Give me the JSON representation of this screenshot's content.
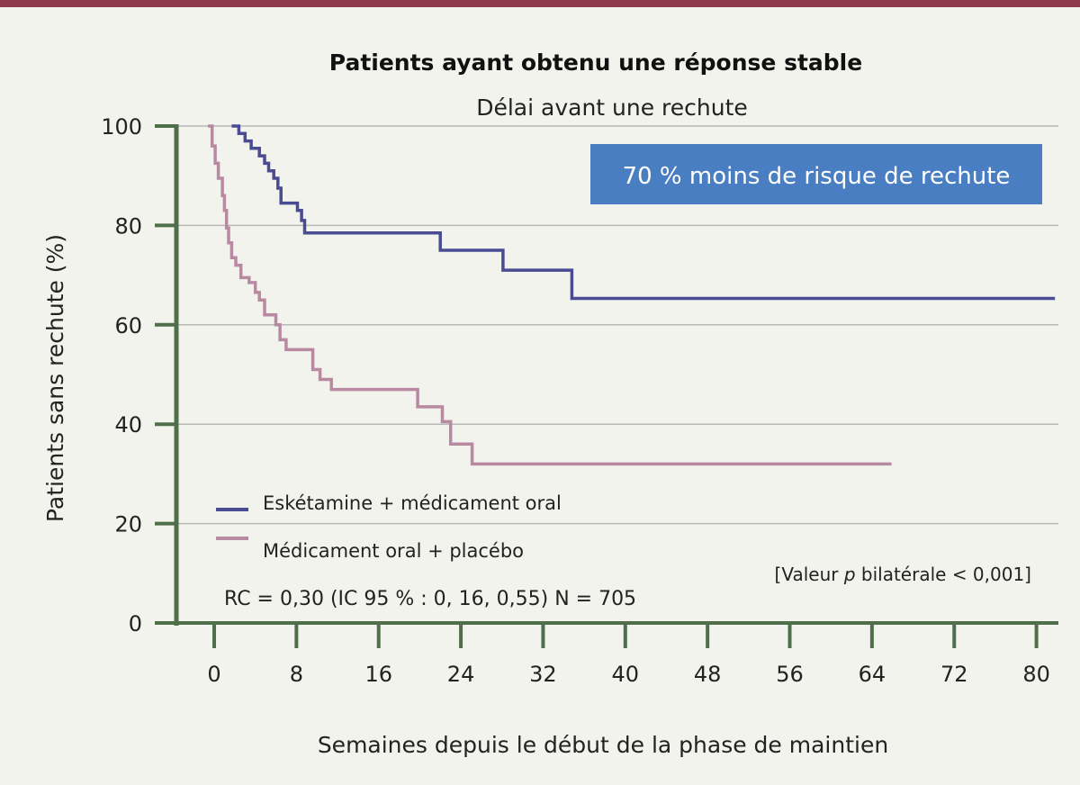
{
  "chart_data": {
    "type": "line",
    "title": "Patients ayant obtenu une réponse stable",
    "subtitle": "Délai avant une rechute",
    "xlabel": "Semaines depuis le début de la phase de maintien",
    "ylabel": "Patients sans rechute (%)",
    "xlim": [
      -3.5,
      82
    ],
    "ylim": [
      0,
      100
    ],
    "xticks": [
      0,
      8,
      16,
      24,
      32,
      40,
      48,
      56,
      64,
      72,
      80
    ],
    "yticks": [
      0,
      20,
      40,
      60,
      80,
      100
    ],
    "grid": "horizontal",
    "legend_position": "bottom-left",
    "callout": "70 % moins de risque de rechute",
    "note_prefix": "[Valeur ",
    "note_italic": "p",
    "note_suffix": " bilatérale < 0,001]",
    "stats": "RC = 0,30 (IC 95 % : 0, 16, 0,55) N = 705",
    "colors": {
      "axis": "#4f6e4a",
      "grid": "#b8b8b8",
      "callout_bg": "#4a7ec2",
      "top_rule": "#8d3a4c"
    },
    "series": [
      {
        "name": "Eskétamine + médicament oral",
        "color": "#4a4c93",
        "step_points": [
          [
            1.7,
            100
          ],
          [
            2.4,
            98.5
          ],
          [
            3,
            97
          ],
          [
            3.6,
            95.5
          ],
          [
            4.4,
            94
          ],
          [
            4.9,
            92.5
          ],
          [
            5.3,
            91
          ],
          [
            5.8,
            89.5
          ],
          [
            6.2,
            87.5
          ],
          [
            6.5,
            84.5
          ],
          [
            8.1,
            83
          ],
          [
            8.5,
            81
          ],
          [
            8.8,
            78.5
          ],
          [
            22,
            75
          ],
          [
            28.1,
            71
          ],
          [
            34.8,
            65.3
          ],
          [
            81.8,
            65.3
          ]
        ]
      },
      {
        "name": "Médicament oral + placébo",
        "color": "#b88aa2",
        "step_points": [
          [
            -0.6,
            100
          ],
          [
            -0.2,
            96
          ],
          [
            0.1,
            92.5
          ],
          [
            0.4,
            89.5
          ],
          [
            0.8,
            86
          ],
          [
            1,
            83
          ],
          [
            1.2,
            79.5
          ],
          [
            1.4,
            76.5
          ],
          [
            1.7,
            73.5
          ],
          [
            2.1,
            72
          ],
          [
            2.6,
            69.5
          ],
          [
            3.4,
            68.5
          ],
          [
            4,
            66.5
          ],
          [
            4.4,
            65
          ],
          [
            4.9,
            62
          ],
          [
            6,
            60
          ],
          [
            6.4,
            57
          ],
          [
            7,
            55
          ],
          [
            9.6,
            51
          ],
          [
            10.3,
            49
          ],
          [
            11.4,
            47
          ],
          [
            19.8,
            43.5
          ],
          [
            22.2,
            40.5
          ],
          [
            23,
            36
          ],
          [
            25.1,
            32
          ],
          [
            65.9,
            32
          ]
        ]
      }
    ]
  }
}
